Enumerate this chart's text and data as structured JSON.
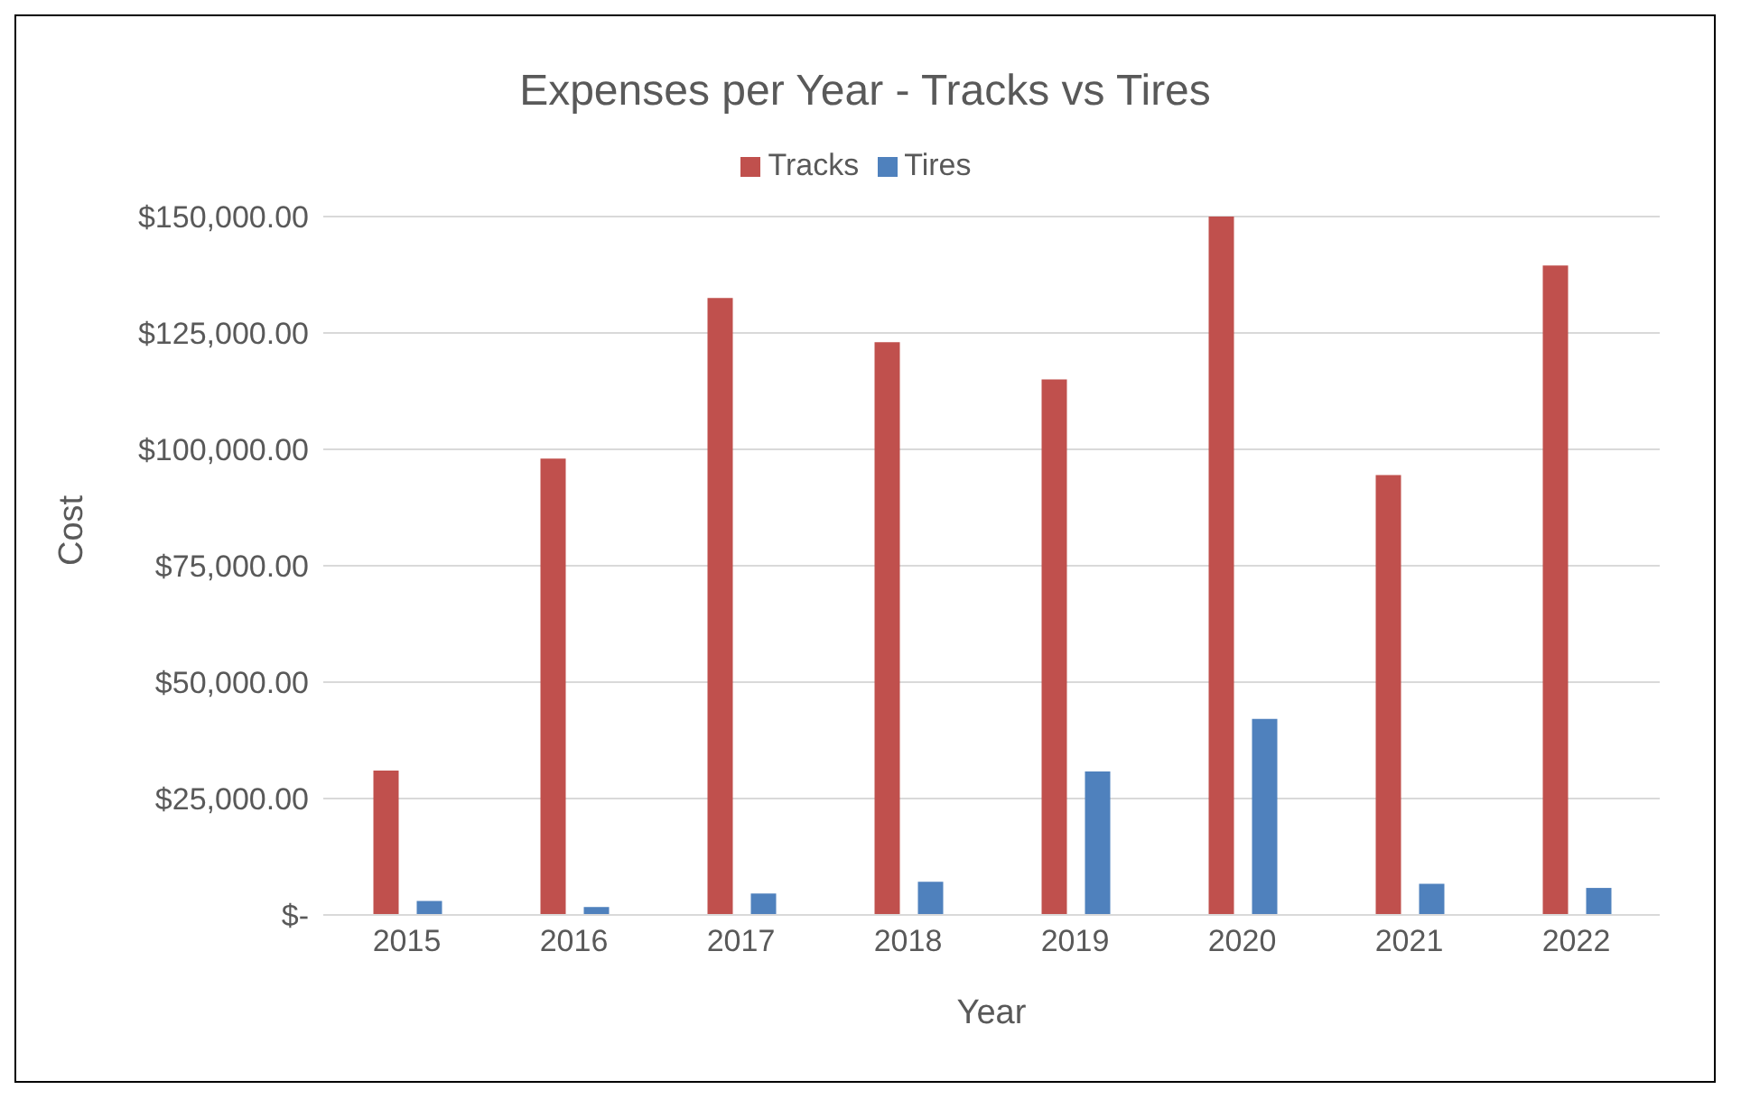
{
  "chart_data": {
    "type": "bar",
    "title": "Expenses per Year - Tracks vs Tires",
    "xlabel": "Year",
    "ylabel": "Cost",
    "categories": [
      "2015",
      "2016",
      "2017",
      "2018",
      "2019",
      "2020",
      "2021",
      "2022"
    ],
    "series": [
      {
        "name": "Tracks",
        "color": "#c0504d",
        "values": [
          31000,
          98000,
          132500,
          123000,
          115000,
          150000,
          94500,
          139500
        ]
      },
      {
        "name": "Tires",
        "color": "#4f81bd",
        "values": [
          3000,
          1700,
          4600,
          7100,
          30800,
          42100,
          6700,
          5800
        ]
      }
    ],
    "ylim": [
      0,
      150000
    ],
    "yticks": [
      {
        "value": 0,
        "label": "$-"
      },
      {
        "value": 25000,
        "label": "$25,000.00"
      },
      {
        "value": 50000,
        "label": "$50,000.00"
      },
      {
        "value": 75000,
        "label": "$75,000.00"
      },
      {
        "value": 100000,
        "label": "$100,000.00"
      },
      {
        "value": 125000,
        "label": "$125,000.00"
      },
      {
        "value": 150000,
        "label": "$150,000.00"
      }
    ],
    "grid": "y",
    "legend": "top"
  }
}
